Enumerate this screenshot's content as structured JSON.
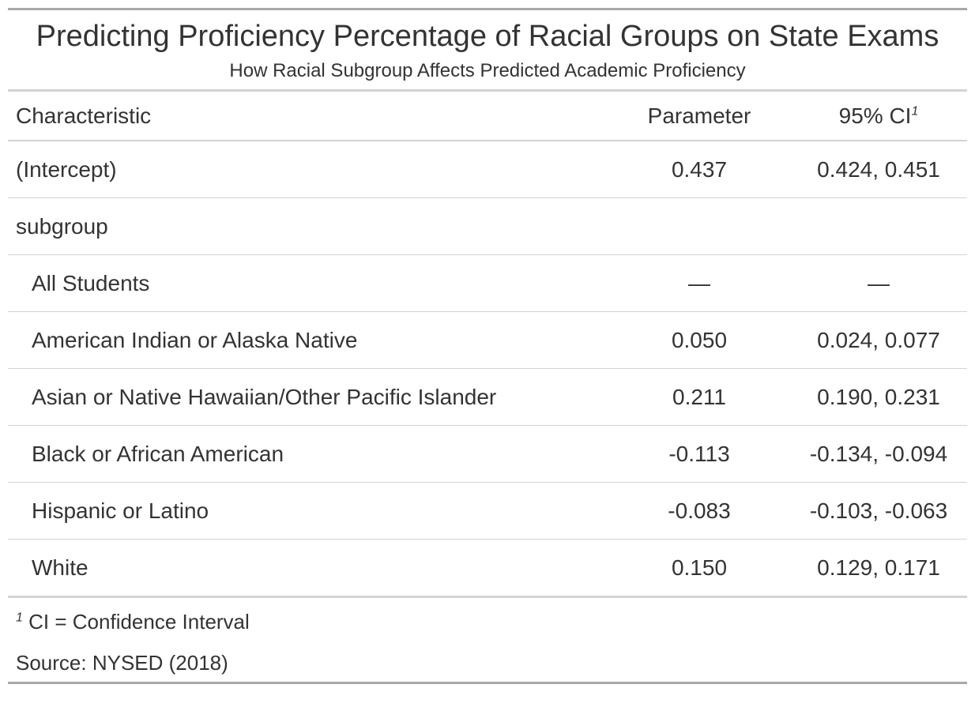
{
  "title": "Predicting Proficiency Percentage of Racial Groups on State Exams",
  "subtitle": "How Racial Subgroup Affects Predicted Academic Proficiency",
  "columns": {
    "characteristic": "Characteristic",
    "parameter": "Parameter",
    "ci": "95% CI",
    "ci_footnote_mark": "1"
  },
  "rows": [
    {
      "label": "(Intercept)",
      "parameter": "0.437",
      "ci": "0.424, 0.451"
    },
    {
      "label": "subgroup",
      "parameter": "",
      "ci": ""
    },
    {
      "label": "All Students",
      "parameter": "—",
      "ci": "—"
    },
    {
      "label": "American Indian or Alaska Native",
      "parameter": "0.050",
      "ci": "0.024, 0.077"
    },
    {
      "label": "Asian or Native Hawaiian/Other Pacific Islander",
      "parameter": "0.211",
      "ci": "0.190, 0.231"
    },
    {
      "label": "Black or African American",
      "parameter": "-0.113",
      "ci": "-0.134, -0.094"
    },
    {
      "label": "Hispanic or Latino",
      "parameter": "-0.083",
      "ci": "-0.103, -0.063"
    },
    {
      "label": "White",
      "parameter": "0.150",
      "ci": "0.129, 0.171"
    }
  ],
  "footnote": {
    "mark": "1",
    "text": "CI = Confidence Interval"
  },
  "source_note": "Source: NYSED (2018)"
}
